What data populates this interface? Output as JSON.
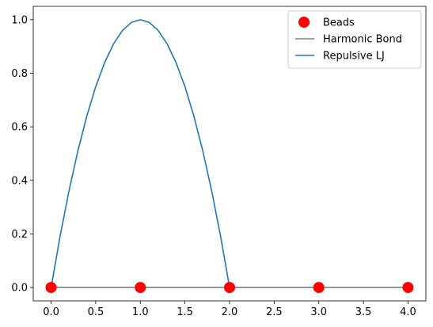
{
  "chart_data": {
    "type": "line",
    "xlim": [
      -0.2,
      4.2
    ],
    "ylim": [
      -0.05,
      1.05
    ],
    "xticks": [
      0.0,
      0.5,
      1.0,
      1.5,
      2.0,
      2.5,
      3.0,
      3.5,
      4.0
    ],
    "xtick_labels": [
      "0.0",
      "0.5",
      "1.0",
      "1.5",
      "2.0",
      "2.5",
      "3.0",
      "3.5",
      "4.0"
    ],
    "yticks": [
      0.0,
      0.2,
      0.4,
      0.6,
      0.8,
      1.0
    ],
    "ytick_labels": [
      "0.0",
      "0.2",
      "0.4",
      "0.6",
      "0.8",
      "1.0"
    ],
    "grid": false,
    "legend_position": "top-right",
    "series": [
      {
        "name": "Beads",
        "kind": "markers",
        "color": "#ff0000",
        "x": [
          0,
          1,
          2,
          3,
          4
        ],
        "y": [
          0,
          0,
          0,
          0,
          0
        ]
      },
      {
        "name": "Harmonic Bond",
        "kind": "line",
        "color": "#808080",
        "x": [
          0,
          1,
          2,
          3,
          4
        ],
        "y": [
          0,
          0,
          0,
          0,
          0
        ]
      },
      {
        "name": "Repulsive LJ",
        "kind": "line",
        "color": "#1f77b4",
        "x": [
          0.0,
          0.1,
          0.2,
          0.3,
          0.4,
          0.5,
          0.6,
          0.7,
          0.8,
          0.9,
          1.0,
          1.1,
          1.2,
          1.3,
          1.4,
          1.5,
          1.6,
          1.7,
          1.8,
          1.9,
          2.0
        ],
        "y": [
          0.0,
          0.19,
          0.36,
          0.51,
          0.64,
          0.75,
          0.84,
          0.91,
          0.96,
          0.99,
          1.0,
          0.99,
          0.96,
          0.91,
          0.84,
          0.75,
          0.64,
          0.51,
          0.36,
          0.19,
          0.0
        ]
      }
    ]
  }
}
